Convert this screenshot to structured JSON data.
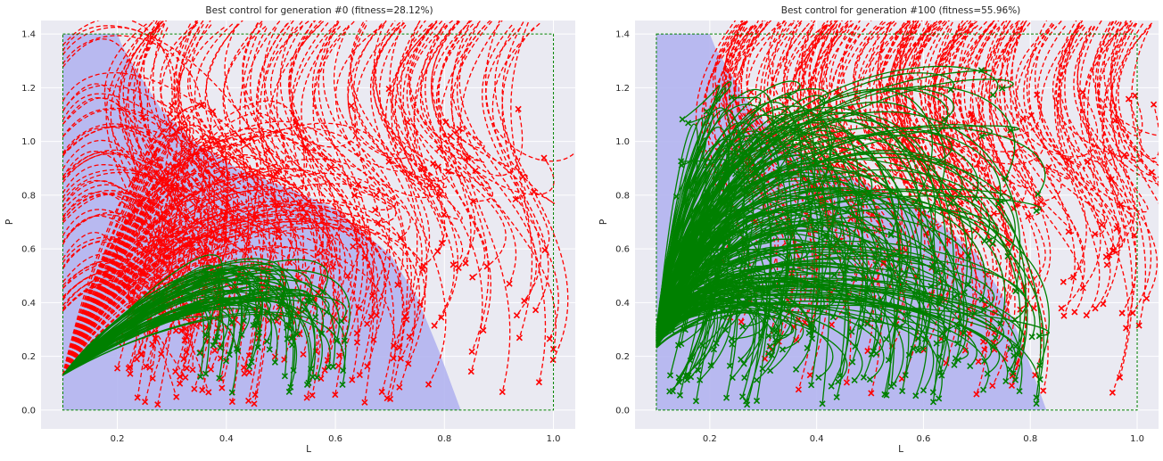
{
  "chart_data": [
    {
      "type": "line",
      "title": "Best control for generation #0 (fitness=28.12%)",
      "xlabel": "L",
      "ylabel": "P",
      "xlim": [
        0.06,
        1.04
      ],
      "ylim": [
        -0.07,
        1.45
      ],
      "xticks": [
        "0.2",
        "0.4",
        "0.6",
        "0.8",
        "1.0"
      ],
      "yticks": [
        "0.0",
        "0.2",
        "0.4",
        "0.6",
        "0.8",
        "1.0",
        "1.2",
        "1.4"
      ],
      "grid": true,
      "domain_box": {
        "x": [
          0.1,
          1.0
        ],
        "y": [
          0.0,
          1.4
        ]
      },
      "viability_region": [
        [
          0.1,
          0
        ],
        [
          0.83,
          0
        ],
        [
          0.79,
          0.22
        ],
        [
          0.75,
          0.42
        ],
        [
          0.7,
          0.58
        ],
        [
          0.64,
          0.68
        ],
        [
          0.6,
          0.75
        ],
        [
          0.52,
          0.82
        ],
        [
          0.42,
          0.9
        ],
        [
          0.34,
          1.0
        ],
        [
          0.28,
          1.12
        ],
        [
          0.24,
          1.25
        ],
        [
          0.21,
          1.35
        ],
        [
          0.2,
          1.4
        ],
        [
          0.1,
          1.4
        ]
      ],
      "attractor_point": [
        0.1,
        0.13
      ],
      "series": [
        {
          "status": "success",
          "color": "#008000",
          "style": "solid",
          "count": 70
        },
        {
          "status": "failure",
          "color": "#ff0000",
          "style": "dashed",
          "count": 260
        }
      ],
      "colors": {
        "background": "#eaeaf2",
        "grid": "#ffffff",
        "region": "#b3b4f0",
        "success": "#008000",
        "failure": "#ff0000"
      }
    },
    {
      "type": "line",
      "title": "Best control for generation #100 (fitness=55.96%)",
      "xlabel": "L",
      "ylabel": "P",
      "xlim": [
        0.06,
        1.04
      ],
      "ylim": [
        -0.07,
        1.45
      ],
      "xticks": [
        "0.2",
        "0.4",
        "0.6",
        "0.8",
        "1.0"
      ],
      "yticks": [
        "0.0",
        "0.2",
        "0.4",
        "0.6",
        "0.8",
        "1.0",
        "1.2",
        "1.4"
      ],
      "grid": true,
      "domain_box": {
        "x": [
          0.1,
          1.0
        ],
        "y": [
          0.0,
          1.4
        ]
      },
      "viability_region": [
        [
          0.1,
          0
        ],
        [
          0.83,
          0
        ],
        [
          0.79,
          0.22
        ],
        [
          0.75,
          0.42
        ],
        [
          0.7,
          0.58
        ],
        [
          0.64,
          0.68
        ],
        [
          0.6,
          0.75
        ],
        [
          0.52,
          0.82
        ],
        [
          0.42,
          0.9
        ],
        [
          0.34,
          1.0
        ],
        [
          0.28,
          1.12
        ],
        [
          0.24,
          1.25
        ],
        [
          0.21,
          1.35
        ],
        [
          0.2,
          1.4
        ],
        [
          0.1,
          1.4
        ]
      ],
      "attractor_point": [
        0.1,
        0.27
      ],
      "series": [
        {
          "status": "success",
          "color": "#008000",
          "style": "solid",
          "count": 260
        },
        {
          "status": "failure",
          "color": "#ff0000",
          "style": "dashed",
          "count": 200
        }
      ],
      "colors": {
        "background": "#eaeaf2",
        "grid": "#ffffff",
        "region": "#b3b4f0",
        "success": "#008000",
        "failure": "#ff0000"
      }
    }
  ]
}
